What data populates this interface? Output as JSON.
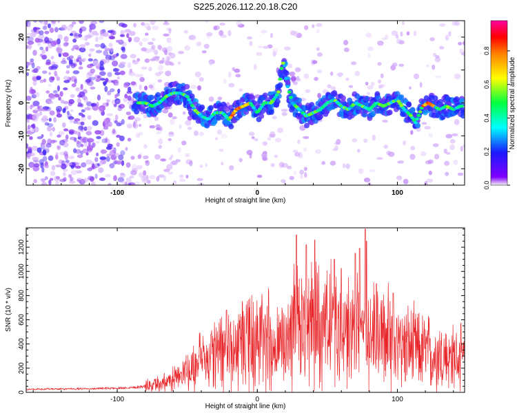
{
  "title": "S225.2026.112.20.18.C20",
  "colors": {
    "line": "#e8262a",
    "axis": "#000000"
  },
  "chart_data": [
    {
      "type": "heatmap",
      "xlabel": "Height of straight line (km)",
      "ylabel": "Frequency (Hz)",
      "xlim": [
        -165,
        148
      ],
      "ylim": [
        -25,
        25
      ],
      "xticks": [
        -100,
        0,
        100
      ],
      "yticks": [
        -20,
        -10,
        0,
        10,
        20
      ],
      "ridge": {
        "x": [
          -85,
          -80,
          -75,
          -70,
          -65,
          -60,
          -55,
          -50,
          -45,
          -40,
          -35,
          -30,
          -25,
          -20,
          -15,
          -10,
          -5,
          0,
          5,
          10,
          15,
          17,
          19,
          21,
          25,
          30,
          35,
          40,
          45,
          50,
          55,
          60,
          65,
          70,
          75,
          80,
          85,
          90,
          95,
          100,
          105,
          110,
          113,
          118,
          122,
          126,
          130,
          135,
          140,
          145
        ],
        "freq": [
          0,
          0,
          -1,
          0,
          2,
          3,
          3,
          2,
          -2,
          -4,
          -5,
          -3,
          -3,
          -5,
          -2,
          -1,
          0,
          -3,
          0,
          0,
          3,
          10,
          13,
          6,
          0,
          -2,
          -4,
          -3,
          -2,
          0,
          1,
          -1,
          -2,
          0,
          -1,
          -2,
          0,
          -1,
          0,
          1,
          -2,
          -4,
          -6,
          -1,
          0,
          -1,
          -2,
          -1,
          -2,
          -1
        ]
      },
      "colorbar": {
        "label": "Normalized spectral amplitude",
        "range": [
          0,
          0.98
        ],
        "ticks": [
          "0.0",
          "0.2",
          "0.4",
          "0.6",
          "0.8"
        ]
      }
    },
    {
      "type": "line",
      "xlabel": "Height of straight line (km)",
      "ylabel": "SNR (10 * v/v)",
      "xlim": [
        -165,
        148
      ],
      "ylim": [
        0,
        1360
      ],
      "xticks": [
        -100,
        0,
        100
      ],
      "yticks": [
        0,
        200,
        400,
        600,
        800,
        1000,
        1200
      ],
      "series": [
        {
          "name": "SNR",
          "x": [
            -165,
            -140,
            -120,
            -100,
            -90,
            -80,
            -70,
            -60,
            -55,
            -50,
            -45,
            -40,
            -35,
            -30,
            -25,
            -20,
            -15,
            -10,
            -5,
            0,
            5,
            8,
            10,
            12,
            15,
            20,
            25,
            30,
            35,
            40,
            45,
            50,
            55,
            60,
            65,
            70,
            75,
            80,
            85,
            90,
            95,
            100,
            105,
            110,
            115,
            120,
            125,
            130,
            135,
            140,
            148
          ],
          "mean": [
            25,
            28,
            30,
            35,
            40,
            50,
            70,
            100,
            130,
            160,
            200,
            250,
            280,
            300,
            320,
            340,
            360,
            380,
            400,
            420,
            440,
            470,
            390,
            350,
            360,
            420,
            480,
            520,
            550,
            580,
            560,
            540,
            520,
            510,
            490,
            500,
            510,
            480,
            460,
            440,
            420,
            400,
            380,
            360,
            340,
            330,
            320,
            300,
            290,
            280,
            270
          ],
          "peaks": [
            {
              "x": -33,
              "v": 480
            },
            {
              "x": -22,
              "v": 680
            },
            {
              "x": 28,
              "v": 1300
            },
            {
              "x": 35,
              "v": 1220
            },
            {
              "x": 41,
              "v": 1260
            },
            {
              "x": 55,
              "v": 1100
            },
            {
              "x": 70,
              "v": 1150
            },
            {
              "x": 73,
              "v": 1190
            },
            {
              "x": 77,
              "v": 1350
            },
            {
              "x": 78,
              "v": 1250
            },
            {
              "x": 85,
              "v": 900
            },
            {
              "x": 97,
              "v": 820
            }
          ]
        }
      ]
    }
  ]
}
